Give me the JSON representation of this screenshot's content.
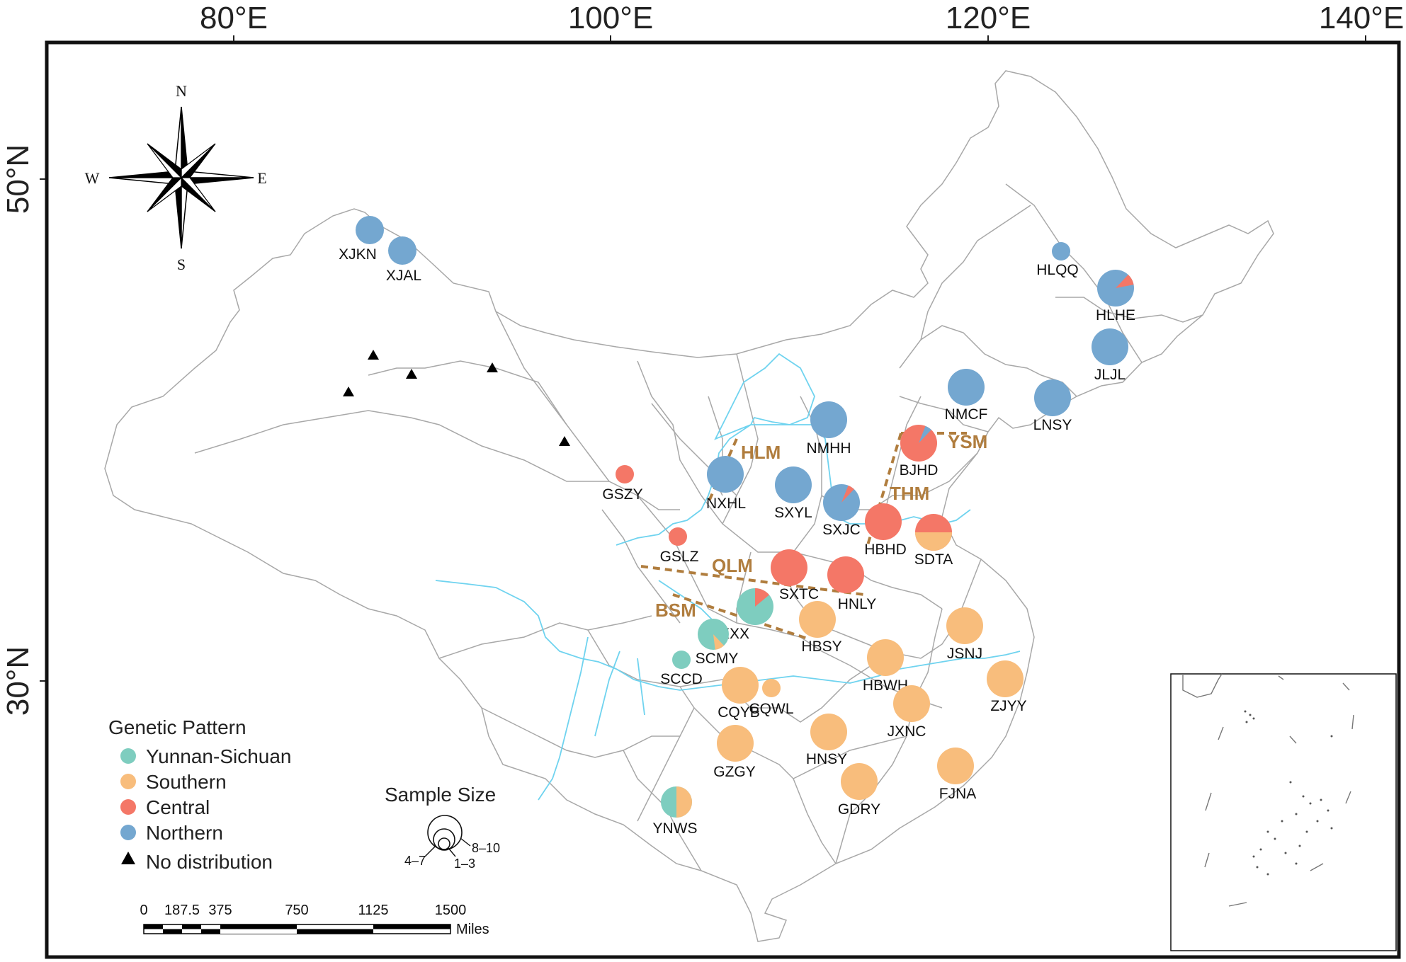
{
  "axes": {
    "longitude_labels": [
      "80°E",
      "100°E",
      "120°E",
      "140°E"
    ],
    "latitude_labels": [
      "50°N",
      "30°N"
    ]
  },
  "compass": {
    "north": "N",
    "south": "S",
    "east": "E",
    "west": "W"
  },
  "legend": {
    "title": "Genetic Pattern",
    "items": [
      {
        "label": "Yunnan-Sichuan",
        "color": "#7ecdbf"
      },
      {
        "label": "Southern",
        "color": "#f8bd7c"
      },
      {
        "label": "Central",
        "color": "#f47767"
      },
      {
        "label": "Northern",
        "color": "#74a7d0"
      },
      {
        "label": "No distribution",
        "symbol": "triangle"
      }
    ]
  },
  "sample_size": {
    "title": "Sample Size",
    "classes": [
      "8–10",
      "4–7",
      "1–3"
    ]
  },
  "scale_bar": {
    "ticks": [
      "0",
      "187.5",
      "375",
      "750",
      "1125",
      "1500"
    ],
    "unit": "Miles"
  },
  "colors": {
    "yunnan_sichuan": "#7ecdbf",
    "southern": "#f8bd7c",
    "central": "#f47767",
    "northern": "#74a7d0",
    "mountain": "#b07d3e",
    "river": "#6fd3ef",
    "boundary": "#a8a8a8"
  },
  "mountains": [
    {
      "label": "HLM",
      "name": "helan-mountains"
    },
    {
      "label": "YSM",
      "name": "yan-mountains"
    },
    {
      "label": "THM",
      "name": "taihang-mountains"
    },
    {
      "label": "QLM",
      "name": "qinling-mountains"
    },
    {
      "label": "BSM",
      "name": "bashan-mountains"
    }
  ],
  "sites": [
    {
      "label": "XJKN",
      "pattern": "Northern"
    },
    {
      "label": "XJAL",
      "pattern": "Northern"
    },
    {
      "label": "HLQQ",
      "pattern": "Northern"
    },
    {
      "label": "HLHE",
      "pattern": "Northern"
    },
    {
      "label": "JLJL",
      "pattern": "Northern"
    },
    {
      "label": "NMCF",
      "pattern": "Northern"
    },
    {
      "label": "LNSY",
      "pattern": "Northern"
    },
    {
      "label": "NMHH",
      "pattern": "Northern"
    },
    {
      "label": "BJHD",
      "pattern": "Central"
    },
    {
      "label": "NXHL",
      "pattern": "Northern"
    },
    {
      "label": "SXYL",
      "pattern": "Northern"
    },
    {
      "label": "SXJC",
      "pattern": "Northern"
    },
    {
      "label": "GSZY",
      "pattern": "Central"
    },
    {
      "label": "HBHD",
      "pattern": "Central"
    },
    {
      "label": "SDTA",
      "pattern": "Central"
    },
    {
      "label": "GSLZ",
      "pattern": "Central"
    },
    {
      "label": "SXTC",
      "pattern": "Central"
    },
    {
      "label": "HNLY",
      "pattern": "Central"
    },
    {
      "label": "SXXX",
      "pattern": "Yunnan-Sichuan"
    },
    {
      "label": "HBSY",
      "pattern": "Southern"
    },
    {
      "label": "JSNJ",
      "pattern": "Southern"
    },
    {
      "label": "SCMY",
      "pattern": "Yunnan-Sichuan"
    },
    {
      "label": "HBWH",
      "pattern": "Southern"
    },
    {
      "label": "SCCD",
      "pattern": "Yunnan-Sichuan"
    },
    {
      "label": "CQYB",
      "pattern": "Southern"
    },
    {
      "label": "CQWL",
      "pattern": "Southern"
    },
    {
      "label": "ZJYY",
      "pattern": "Southern"
    },
    {
      "label": "JXNC",
      "pattern": "Southern"
    },
    {
      "label": "GZGY",
      "pattern": "Southern"
    },
    {
      "label": "HNSY",
      "pattern": "Southern"
    },
    {
      "label": "FJNA",
      "pattern": "Southern"
    },
    {
      "label": "GDRY",
      "pattern": "Southern"
    },
    {
      "label": "YNWS",
      "pattern": "Yunnan-Sichuan"
    }
  ]
}
